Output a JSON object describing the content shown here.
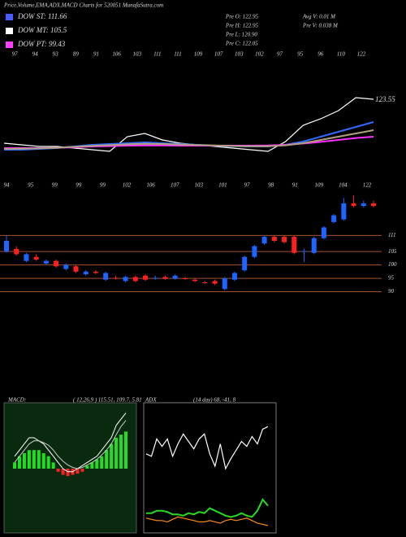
{
  "header": {
    "title": "Price,Volume,EMA,ADX,MACD Charts for 520051 MunafaSutra.com",
    "legend": [
      {
        "name": "DOW ST: 111.66",
        "color": "#4a5bff"
      },
      {
        "name": "DOW MT: 105.5",
        "color": "#ffffff"
      },
      {
        "name": "DOW PT: 99.43",
        "color": "#ff40ff"
      }
    ],
    "info_left": [
      "Pre   O: 122.95",
      "Pre   H: 122.95",
      "Pre   L: 120.90",
      "Pre   C: 122.05"
    ],
    "info_right": [
      "Avg V: 0.01 M",
      "Pre   V: 0.038  M"
    ]
  },
  "chart_data": [
    {
      "type": "line",
      "top_labels": [
        97,
        94,
        93,
        89,
        91,
        106,
        103,
        111,
        111,
        109,
        107,
        103,
        102,
        97,
        95,
        96,
        110,
        122
      ],
      "ylim": [
        85,
        125
      ],
      "last_label": 123.55,
      "series": [
        {
          "name": "Price",
          "color": "#ffffff",
          "values": [
            97,
            96,
            95,
            95,
            94,
            93,
            92,
            101,
            103,
            99,
            97,
            96,
            95,
            94,
            93,
            92,
            98,
            108,
            112,
            117,
            125,
            124
          ]
        },
        {
          "name": "EMA",
          "color": "#2f6bff",
          "values": [
            93,
            93,
            93.5,
            94,
            95,
            96,
            96.5,
            97,
            97.5,
            97,
            96.5,
            96,
            95.5,
            95.2,
            95,
            95,
            96,
            98,
            101,
            104,
            107,
            110
          ]
        },
        {
          "name": "EMA long",
          "color": "#ff30ff",
          "values": [
            94,
            94,
            94,
            94.2,
            94.5,
            95,
            95.2,
            95.5,
            95.6,
            95.6,
            95.5,
            95.5,
            95.5,
            95.5,
            95.5,
            95.6,
            96,
            96.8,
            97.8,
            99,
            100.2,
            101
          ]
        },
        {
          "name": "EMA mid",
          "color": "#b0a080",
          "values": [
            93.5,
            93.6,
            93.8,
            94.2,
            94.8,
            95.4,
            95.8,
            96.3,
            96.6,
            96.5,
            96.2,
            95.9,
            95.6,
            95.3,
            95.1,
            95.1,
            95.7,
            97,
            99,
            101,
            103,
            105
          ]
        }
      ]
    },
    {
      "type": "candlestick",
      "top_labels": [
        94,
        95,
        99,
        99,
        99,
        102,
        106,
        107,
        103,
        101,
        97,
        98,
        91,
        109,
        104,
        122
      ],
      "ylim": [
        85,
        126
      ],
      "yticks": [
        111,
        105,
        100,
        95,
        90
      ],
      "up_color": "#1e64ff",
      "down_color": "#ff2020",
      "grid_color": "#a0522d",
      "open": [
        105,
        106,
        101.5,
        103,
        100.5,
        101.5,
        98.5,
        99.5,
        96.5,
        97.5,
        94.5,
        95.2,
        94,
        95.5,
        96,
        95,
        95.5,
        94.8,
        95,
        94.5,
        93.5,
        94,
        91,
        94.5,
        98,
        103,
        108,
        110.5,
        110.5,
        110.5,
        105,
        104.5,
        110,
        116,
        117,
        123,
        122,
        123
      ],
      "high": [
        111,
        107,
        104.5,
        104,
        102,
        102,
        100.5,
        100,
        98,
        98,
        97.5,
        96,
        96,
        96,
        96.5,
        96,
        96,
        96.5,
        95.5,
        95,
        94,
        94.5,
        95.5,
        97.5,
        103.5,
        107.5,
        111,
        111,
        111,
        111,
        106,
        110.5,
        114.5,
        119,
        125,
        126,
        124,
        124
      ],
      "low": [
        104.5,
        103.5,
        101,
        101.5,
        100,
        99,
        98,
        97,
        96,
        96.5,
        94,
        94.5,
        93.5,
        93.5,
        94,
        94.5,
        94.5,
        94.5,
        94.5,
        93.5,
        93,
        92.5,
        90.5,
        94,
        97.5,
        102.5,
        107.5,
        108.5,
        108,
        104,
        101,
        104,
        109.5,
        115.5,
        116.5,
        121.5,
        121.5,
        121.5
      ],
      "close": [
        109,
        104,
        104,
        102,
        101.5,
        99.5,
        100,
        97.5,
        97.5,
        97,
        97,
        95,
        95.5,
        94,
        94.5,
        95.2,
        94.8,
        96,
        94.8,
        94,
        93.3,
        93,
        95,
        97,
        103,
        107,
        110.5,
        109,
        108.5,
        104.5,
        105.2,
        110,
        114,
        118.5,
        123,
        122,
        123,
        122
      ]
    },
    {
      "type": "macd",
      "label": "MACD:",
      "params": "( 12,26,9 ) 115.51,  109.7,  5.81",
      "ylim": [
        -10,
        10
      ],
      "bg": "#0a2a10",
      "histogram": [
        1,
        2,
        2.5,
        3,
        3,
        3,
        2.5,
        2,
        1,
        -0.5,
        -1,
        -1.2,
        -1,
        -0.8,
        -0.5,
        0.5,
        1,
        1.5,
        2,
        3,
        4,
        5,
        5.5,
        6
      ],
      "series": [
        {
          "name": "MACD",
          "color": "#ffffff",
          "values": [
            2,
            3,
            4,
            5,
            5,
            4.5,
            4,
            3,
            2,
            1,
            0,
            -0.5,
            -0.5,
            0,
            0.5,
            1,
            1.5,
            2,
            3,
            4,
            5,
            7,
            8,
            9
          ]
        },
        {
          "name": "Signal",
          "color": "#cccccc",
          "values": [
            1,
            2,
            3,
            4,
            4.5,
            4.5,
            4.2,
            3.8,
            3,
            2,
            1.2,
            0.6,
            0.2,
            0,
            0.2,
            0.6,
            1,
            1.5,
            2.2,
            3,
            4,
            5.5,
            6.8,
            7.8
          ]
        }
      ]
    },
    {
      "type": "adx",
      "label": "ADX",
      "params": "(14 day) 68,  -41,  8",
      "ylim": [
        0,
        100
      ],
      "series": [
        {
          "name": "ADX",
          "color": "#ffffff",
          "values": [
            62,
            60,
            74,
            68,
            74,
            60,
            70,
            78,
            72,
            66,
            74,
            78,
            62,
            52,
            70,
            50,
            58,
            65,
            72,
            68,
            76,
            70,
            82,
            84
          ]
        },
        {
          "name": "DI+",
          "color": "#22dd22",
          "values": [
            14,
            14,
            16,
            16,
            15,
            13,
            13,
            12,
            14,
            13,
            15,
            14,
            18,
            16,
            14,
            12,
            11,
            12,
            14,
            12,
            11,
            16,
            25,
            20
          ]
        },
        {
          "name": "DI-",
          "color": "#ff8c1a",
          "values": [
            10,
            9,
            8,
            8,
            7,
            9,
            11,
            10,
            9,
            8,
            7,
            7,
            8,
            7,
            6,
            8,
            9,
            8,
            9,
            10,
            8,
            6,
            5,
            4
          ]
        }
      ]
    }
  ]
}
